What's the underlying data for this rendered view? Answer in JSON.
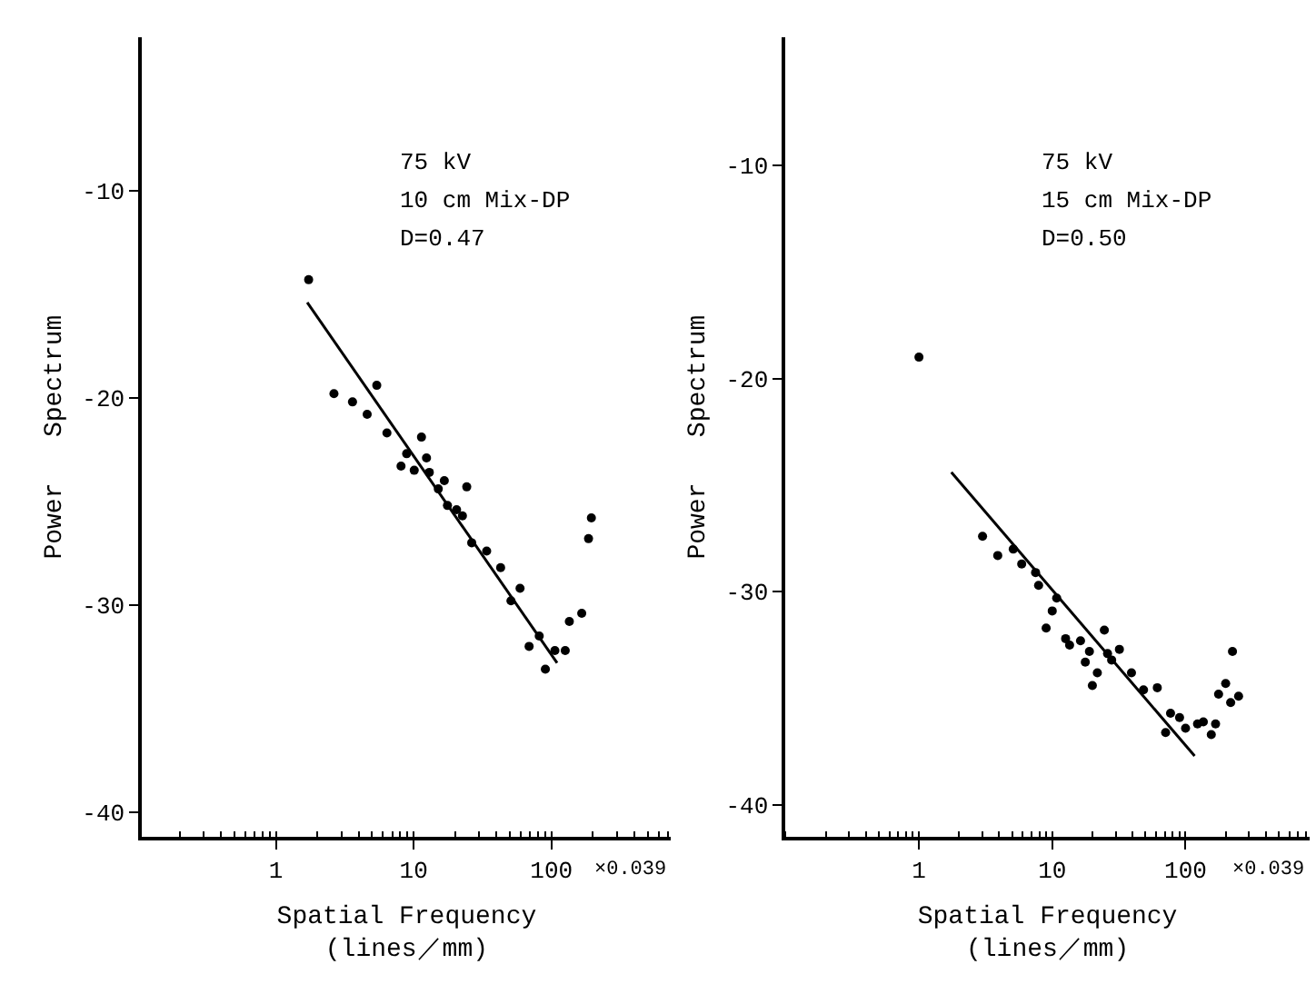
{
  "chart_data": [
    {
      "type": "scatter",
      "log": "x",
      "xlabel": "Spatial Frequency\n(lines／mm)",
      "ylabel": "Power   Spectrum",
      "xlim": [
        0.107,
        740
      ],
      "xticks": [
        1,
        10,
        100
      ],
      "ylim": [
        -41.2,
        -2.6
      ],
      "yticks": [
        -10,
        -20,
        -30,
        -40
      ],
      "annotations": [
        "75 kV",
        "10 cm Mix-DP",
        "D=0.47",
        "×0.039"
      ],
      "series": [
        {
          "marker": "circle",
          "color": "#000000",
          "x": [
            1.73,
            2.64,
            3.6,
            4.6,
            5.4,
            6.4,
            11.4,
            8.1,
            8.9,
            10.1,
            12.4,
            13,
            15.1,
            16.7,
            24.3,
            17.6,
            20.5,
            22.6,
            26.4,
            33.9,
            42.8,
            50.9,
            59.2,
            68.9,
            81.6,
            90.4,
            106,
            126,
            135,
            166,
            186,
            195
          ],
          "values": [
            -14.3,
            -19.8,
            -20.2,
            -20.8,
            -19.4,
            -21.7,
            -21.9,
            -23.3,
            -22.7,
            -23.5,
            -22.9,
            -23.6,
            -24.4,
            -24.0,
            -24.3,
            -25.2,
            -25.4,
            -25.7,
            -27.0,
            -27.4,
            -28.2,
            -29.8,
            -29.2,
            -32.0,
            -31.5,
            -33.1,
            -32.2,
            -32.2,
            -30.8,
            -30.4,
            -26.8,
            -25.8
          ]
        },
        {
          "type": "line",
          "marker": "none",
          "color": "#000000",
          "x": [
            1.69,
            110
          ],
          "values": [
            -15.4,
            -32.8
          ]
        }
      ]
    },
    {
      "type": "scatter",
      "log": "x",
      "xlabel": "Spatial Frequency\n(lines／mm)",
      "ylabel": "Power   Spectrum",
      "xlim": [
        0.1,
        850
      ],
      "xticks": [
        1,
        10,
        100
      ],
      "ylim": [
        -41.5,
        -4
      ],
      "yticks": [
        -10,
        -20,
        -30,
        -40
      ],
      "annotations": [
        "75 kV",
        "15 cm Mix-DP",
        "D=0.50",
        "×0.039"
      ],
      "series": [
        {
          "marker": "circle",
          "color": "#000000",
          "x": [
            1,
            3.0,
            3.9,
            5.1,
            5.9,
            7.9,
            7.5,
            9.0,
            10,
            10.8,
            12.6,
            13.5,
            16.3,
            17.7,
            20.0,
            19.0,
            21.8,
            24.6,
            26.0,
            27.9,
            31.9,
            39.3,
            48.4,
            61.4,
            70.9,
            77.2,
            90.2,
            100,
            123,
            136,
            156,
            168,
            177,
            200,
            218,
            250,
            225
          ],
          "values": [
            -19.0,
            -27.4,
            -28.3,
            -28.0,
            -28.7,
            -29.7,
            -29.1,
            -31.7,
            -30.9,
            -30.3,
            -32.2,
            -32.5,
            -32.3,
            -33.3,
            -34.4,
            -32.8,
            -33.8,
            -31.8,
            -32.9,
            -33.2,
            -32.7,
            -33.8,
            -34.6,
            -34.5,
            -36.6,
            -35.7,
            -35.9,
            -36.4,
            -36.2,
            -36.1,
            -36.7,
            -36.2,
            -34.8,
            -34.3,
            -35.2,
            -34.9,
            -32.8
          ]
        },
        {
          "type": "line",
          "marker": "none",
          "color": "#000000",
          "x": [
            1.75,
            117
          ],
          "values": [
            -24.4,
            -37.7
          ]
        }
      ]
    }
  ]
}
